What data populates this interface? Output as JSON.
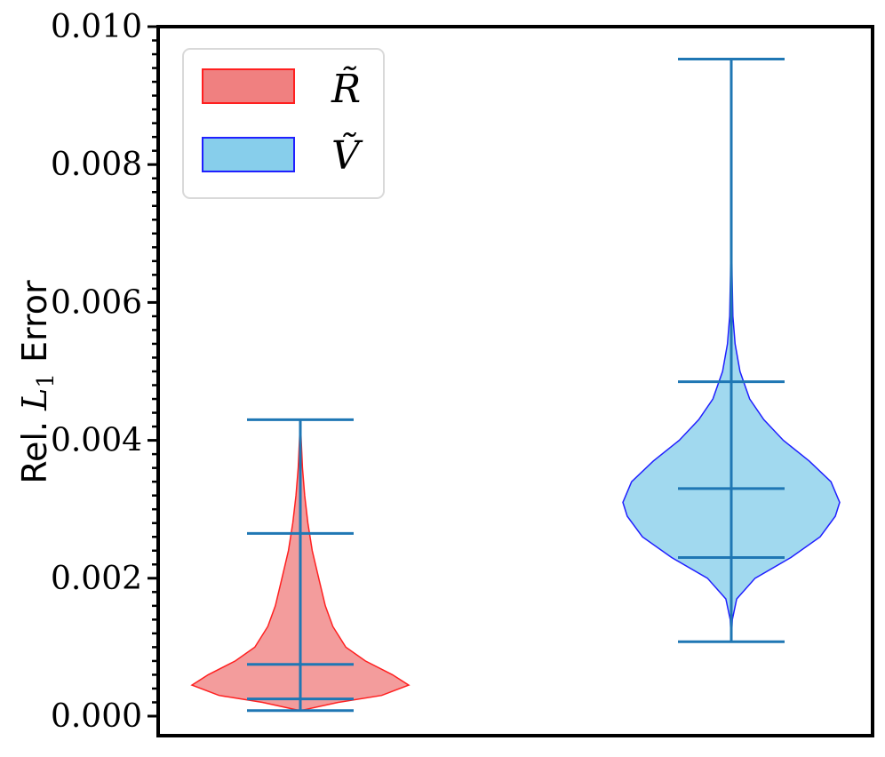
{
  "chart_data": {
    "type": "violin",
    "ylabel": "Rel. L1 Error",
    "ylabel_parts": {
      "prefix": "Rel.",
      "symbol": "L",
      "subscript": "1",
      "suffix": "Error"
    },
    "ylim": [
      0.0,
      0.01
    ],
    "yticks": [
      0.0,
      0.002,
      0.004,
      0.006,
      0.008,
      0.01
    ],
    "ytick_labels": [
      "0.000",
      "0.002",
      "0.004",
      "0.006",
      "0.008",
      "0.010"
    ],
    "legend_position": "upper-left",
    "series": [
      {
        "name": "R̃",
        "fill": "#f08080",
        "edge": "#ff2020",
        "min": 8e-05,
        "q1": 0.00025,
        "median": 0.00075,
        "q3": 0.00265,
        "max": 0.0043,
        "density": [
          [
            8e-05,
            0.0
          ],
          [
            0.0002,
            0.35
          ],
          [
            0.0003,
            0.75
          ],
          [
            0.00045,
            1.0
          ],
          [
            0.0006,
            0.85
          ],
          [
            0.0008,
            0.6
          ],
          [
            0.001,
            0.42
          ],
          [
            0.0013,
            0.3
          ],
          [
            0.0016,
            0.23
          ],
          [
            0.002,
            0.17
          ],
          [
            0.0024,
            0.11
          ],
          [
            0.0028,
            0.07
          ],
          [
            0.0032,
            0.04
          ],
          [
            0.0036,
            0.02
          ],
          [
            0.004,
            0.008
          ],
          [
            0.0043,
            0.0
          ]
        ]
      },
      {
        "name": "Ṽ",
        "fill": "#87ceeb",
        "edge": "#2020ff",
        "min": 0.00108,
        "q1": 0.0023,
        "median": 0.0033,
        "q3": 0.00485,
        "max": 0.00953,
        "density": [
          [
            0.00108,
            0.0
          ],
          [
            0.0014,
            0.01
          ],
          [
            0.0017,
            0.05
          ],
          [
            0.002,
            0.22
          ],
          [
            0.0023,
            0.55
          ],
          [
            0.0026,
            0.82
          ],
          [
            0.0029,
            0.96
          ],
          [
            0.0031,
            1.0
          ],
          [
            0.0034,
            0.92
          ],
          [
            0.0037,
            0.72
          ],
          [
            0.004,
            0.48
          ],
          [
            0.0043,
            0.3
          ],
          [
            0.0046,
            0.17
          ],
          [
            0.005,
            0.08
          ],
          [
            0.0054,
            0.035
          ],
          [
            0.0058,
            0.015
          ],
          [
            0.0064,
            0.007
          ],
          [
            0.007,
            0.003
          ],
          [
            0.0075,
            0.0
          ]
        ]
      }
    ]
  }
}
